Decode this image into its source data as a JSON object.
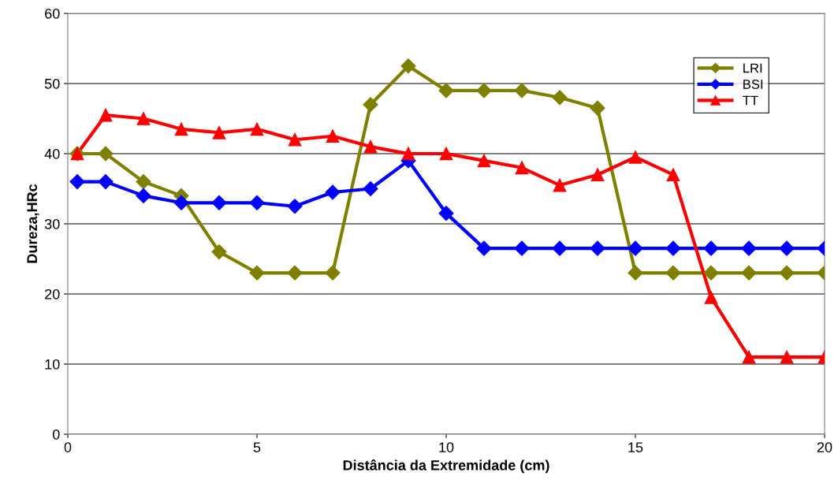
{
  "chart_data": {
    "type": "line",
    "xlabel": "Distância da Extremidade (cm)",
    "ylabel": "Dureza,HRc",
    "x": [
      0.25,
      1,
      2,
      3,
      4,
      5,
      6,
      7,
      8,
      9,
      10,
      11,
      12,
      13,
      14,
      15,
      16,
      17,
      18,
      19,
      20
    ],
    "series": [
      {
        "name": "LRI",
        "color": "#808000",
        "marker": "diamond",
        "values": [
          40,
          40,
          36,
          34,
          26,
          23,
          23,
          23,
          47,
          52.5,
          49,
          49,
          49,
          48,
          46.5,
          23,
          23,
          23,
          23,
          23,
          23
        ]
      },
      {
        "name": "BSI",
        "color": "#0000ff",
        "marker": "diamond",
        "values": [
          36,
          36,
          34,
          33,
          33,
          33,
          32.5,
          34.5,
          35,
          39,
          31.5,
          26.5,
          26.5,
          26.5,
          26.5,
          26.5,
          26.5,
          26.5,
          26.5,
          26.5,
          26.5
        ]
      },
      {
        "name": "TT",
        "color": "#ff0000",
        "marker": "triangle",
        "values": [
          40,
          45.5,
          45,
          43.5,
          43,
          43.5,
          42,
          42.5,
          41,
          40,
          40,
          39,
          38,
          35.5,
          37,
          39.5,
          37,
          19.5,
          11,
          11,
          11
        ]
      }
    ],
    "xlim": [
      0,
      20
    ],
    "xticks": [
      0,
      5,
      10,
      15,
      20
    ],
    "ylim": [
      0,
      60
    ],
    "yticks": [
      0,
      10,
      20,
      30,
      40,
      50,
      60
    ],
    "grid": "y",
    "legend": "top right",
    "line_style": "solid"
  }
}
